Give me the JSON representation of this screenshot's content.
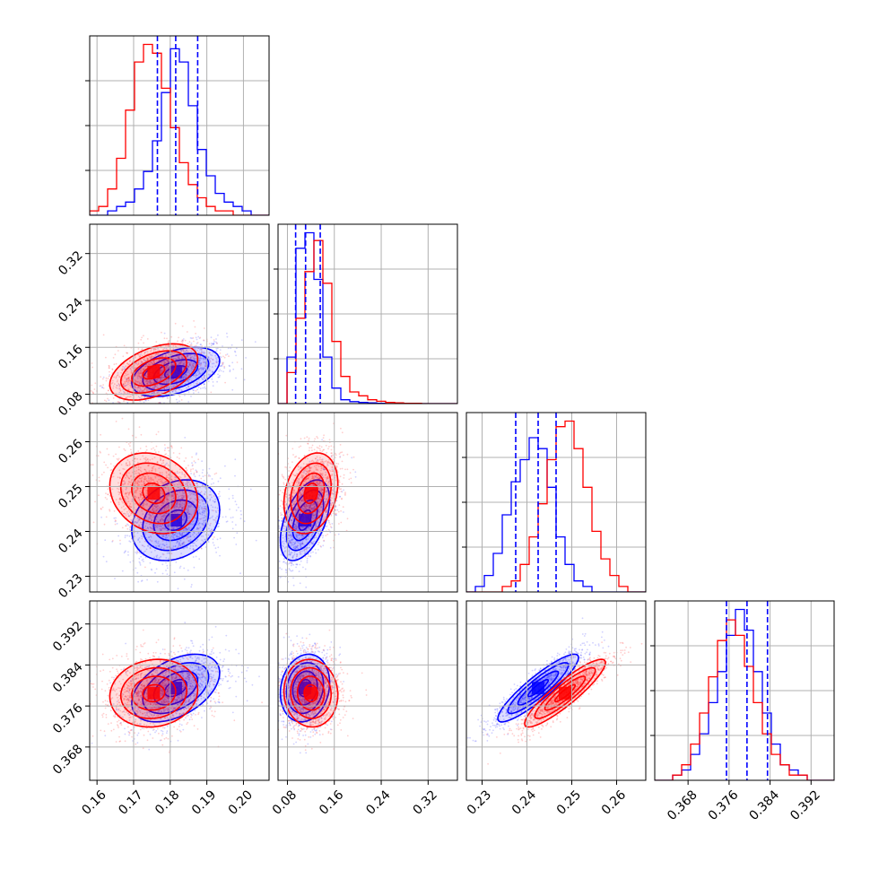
{
  "chart_data": {
    "type": "scatter",
    "subtype": "corner-plot",
    "grid": true,
    "series": [
      {
        "color": "#0000ff"
      },
      {
        "color": "#ff0000"
      }
    ],
    "params": [
      {
        "ticks": [
          "0.16",
          "0.17",
          "0.18",
          "0.19",
          "0.20"
        ],
        "tickvals": [
          0.16,
          0.17,
          0.18,
          0.19,
          0.2
        ],
        "range": [
          0.158,
          0.207
        ]
      },
      {
        "ticks": [
          "0.08",
          "0.16",
          "0.24",
          "0.32"
        ],
        "tickvals": [
          0.08,
          0.16,
          0.24,
          0.32
        ],
        "range": [
          0.064,
          0.37
        ]
      },
      {
        "ticks": [
          "0.23",
          "0.24",
          "0.25",
          "0.26"
        ],
        "tickvals": [
          0.23,
          0.24,
          0.25,
          0.26
        ],
        "range": [
          0.2265,
          0.2665
        ]
      },
      {
        "ticks": [
          "0.368",
          "0.376",
          "0.384",
          "0.392"
        ],
        "tickvals": [
          0.368,
          0.376,
          0.384,
          0.392
        ],
        "range": [
          0.3615,
          0.3965
        ]
      }
    ],
    "quantiles": [
      [
        0.1765,
        0.1815,
        0.1875
      ],
      [
        0.094,
        0.111,
        0.136
      ],
      [
        0.2375,
        0.2425,
        0.2465
      ],
      [
        0.3755,
        0.3795,
        0.3835
      ]
    ],
    "histograms": [
      {
        "edges_range": [
          0.158,
          0.207
        ],
        "blue": [
          0,
          0,
          1,
          2,
          3,
          6,
          10,
          17,
          28,
          38,
          35,
          25,
          15,
          9,
          5,
          3,
          2,
          1,
          0,
          0
        ],
        "red": [
          1,
          2,
          6,
          13,
          24,
          35,
          39,
          37,
          29,
          20,
          12,
          7,
          4,
          2,
          1,
          1,
          0,
          0,
          0,
          0
        ]
      },
      {
        "edges_range": [
          0.064,
          0.37
        ],
        "blue": [
          0,
          12,
          40,
          44,
          32,
          12,
          4,
          1,
          0.5,
          0.3,
          0.2,
          0.1,
          0,
          0,
          0,
          0,
          0,
          0,
          0,
          0
        ],
        "red": [
          0,
          8,
          22,
          34,
          42,
          31,
          16,
          7,
          3,
          2,
          1,
          0.6,
          0.3,
          0.2,
          0.1,
          0.1,
          0,
          0,
          0,
          0
        ]
      },
      {
        "edges_range": [
          0.2265,
          0.2665
        ],
        "blue": [
          0,
          1,
          3,
          7,
          14,
          20,
          24,
          28,
          26,
          19,
          10,
          5,
          2,
          1,
          0,
          0,
          0,
          0,
          0,
          0
        ],
        "red": [
          0,
          0,
          0,
          0,
          1,
          2,
          5,
          10,
          16,
          24,
          30,
          31,
          26,
          19,
          11,
          6,
          3,
          1,
          0,
          0
        ]
      },
      {
        "edges_range": [
          0.3615,
          0.3965
        ],
        "blue": [
          0,
          0,
          1,
          2,
          5,
          9,
          15,
          21,
          28,
          33,
          29,
          21,
          13,
          7,
          3,
          2,
          1,
          0,
          0,
          0
        ],
        "red": [
          0,
          0,
          1,
          3,
          7,
          13,
          20,
          27,
          31,
          28,
          22,
          15,
          9,
          5,
          3,
          1,
          1,
          0,
          0,
          0
        ]
      }
    ],
    "pairs": [
      {
        "row": 1,
        "col": 0,
        "blue": {
          "mean": [
            0.1815,
            0.118
          ],
          "sd": [
            0.006,
            0.021
          ],
          "rho": 0.45
        },
        "red": {
          "mean": [
            0.1755,
            0.118
          ],
          "sd": [
            0.006,
            0.024
          ],
          "rho": 0.45
        }
      },
      {
        "row": 2,
        "col": 0,
        "blue": {
          "mean": [
            0.1815,
            0.2425
          ],
          "sd": [
            0.006,
            0.0045
          ],
          "rho": 0.25
        },
        "red": {
          "mean": [
            0.1755,
            0.2485
          ],
          "sd": [
            0.006,
            0.0045
          ],
          "rho": -0.2
        }
      },
      {
        "row": 2,
        "col": 1,
        "blue": {
          "mean": [
            0.11,
            0.2425
          ],
          "sd": [
            0.021,
            0.0045
          ],
          "rho": 0.5
        },
        "red": {
          "mean": [
            0.12,
            0.2485
          ],
          "sd": [
            0.023,
            0.0045
          ],
          "rho": 0.25
        }
      },
      {
        "row": 3,
        "col": 0,
        "blue": {
          "mean": [
            0.1815,
            0.3795
          ],
          "sd": [
            0.006,
            0.0033
          ],
          "rho": 0.45
        },
        "red": {
          "mean": [
            0.1755,
            0.3785
          ],
          "sd": [
            0.006,
            0.0033
          ],
          "rho": 0.1
        }
      },
      {
        "row": 3,
        "col": 1,
        "blue": {
          "mean": [
            0.11,
            0.3795
          ],
          "sd": [
            0.021,
            0.0033
          ],
          "rho": 0.15
        },
        "red": {
          "mean": [
            0.12,
            0.3785
          ],
          "sd": [
            0.023,
            0.0033
          ],
          "rho": -0.05
        }
      },
      {
        "row": 3,
        "col": 2,
        "blue": {
          "mean": [
            0.2425,
            0.3795
          ],
          "sd": [
            0.0045,
            0.0033
          ],
          "rho": 0.9
        },
        "red": {
          "mean": [
            0.2485,
            0.3785
          ],
          "sd": [
            0.0045,
            0.0033
          ],
          "rho": 0.9
        }
      }
    ]
  }
}
